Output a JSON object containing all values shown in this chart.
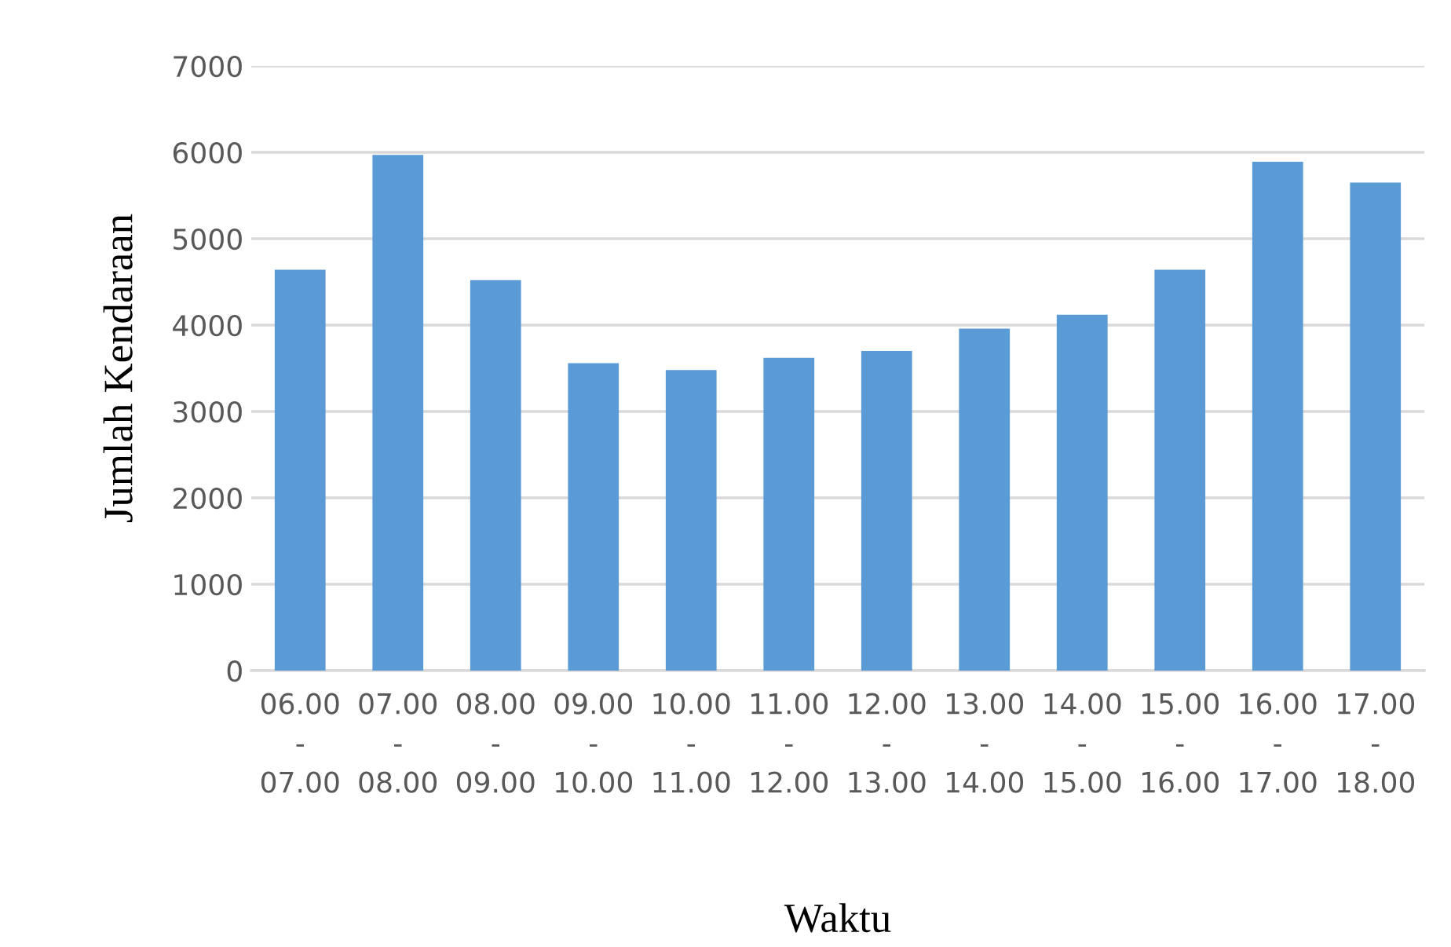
{
  "chart_data": {
    "type": "bar",
    "xlabel": "Waktu",
    "ylabel": "Jumlah Kendaraan",
    "categories": [
      "06.00\n-\n07.00",
      "07.00\n-\n08.00",
      "08.00\n-\n09.00",
      "09.00\n-\n10.00",
      "10.00\n-\n11.00",
      "11.00\n-\n12.00",
      "12.00\n-\n13.00",
      "13.00\n-\n14.00",
      "14.00\n-\n15.00",
      "15.00\n-\n16.00",
      "16.00\n-\n17.00",
      "17.00\n-\n18.00"
    ],
    "values": [
      4640,
      5970,
      4520,
      3560,
      3480,
      3620,
      3700,
      3960,
      4120,
      4640,
      5890,
      5650
    ],
    "color": "#5b9bd5",
    "ylim": [
      0,
      7000
    ],
    "yticks": [
      0,
      1000,
      2000,
      3000,
      4000,
      5000,
      6000,
      7000
    ],
    "grid": "y",
    "legend": false
  }
}
